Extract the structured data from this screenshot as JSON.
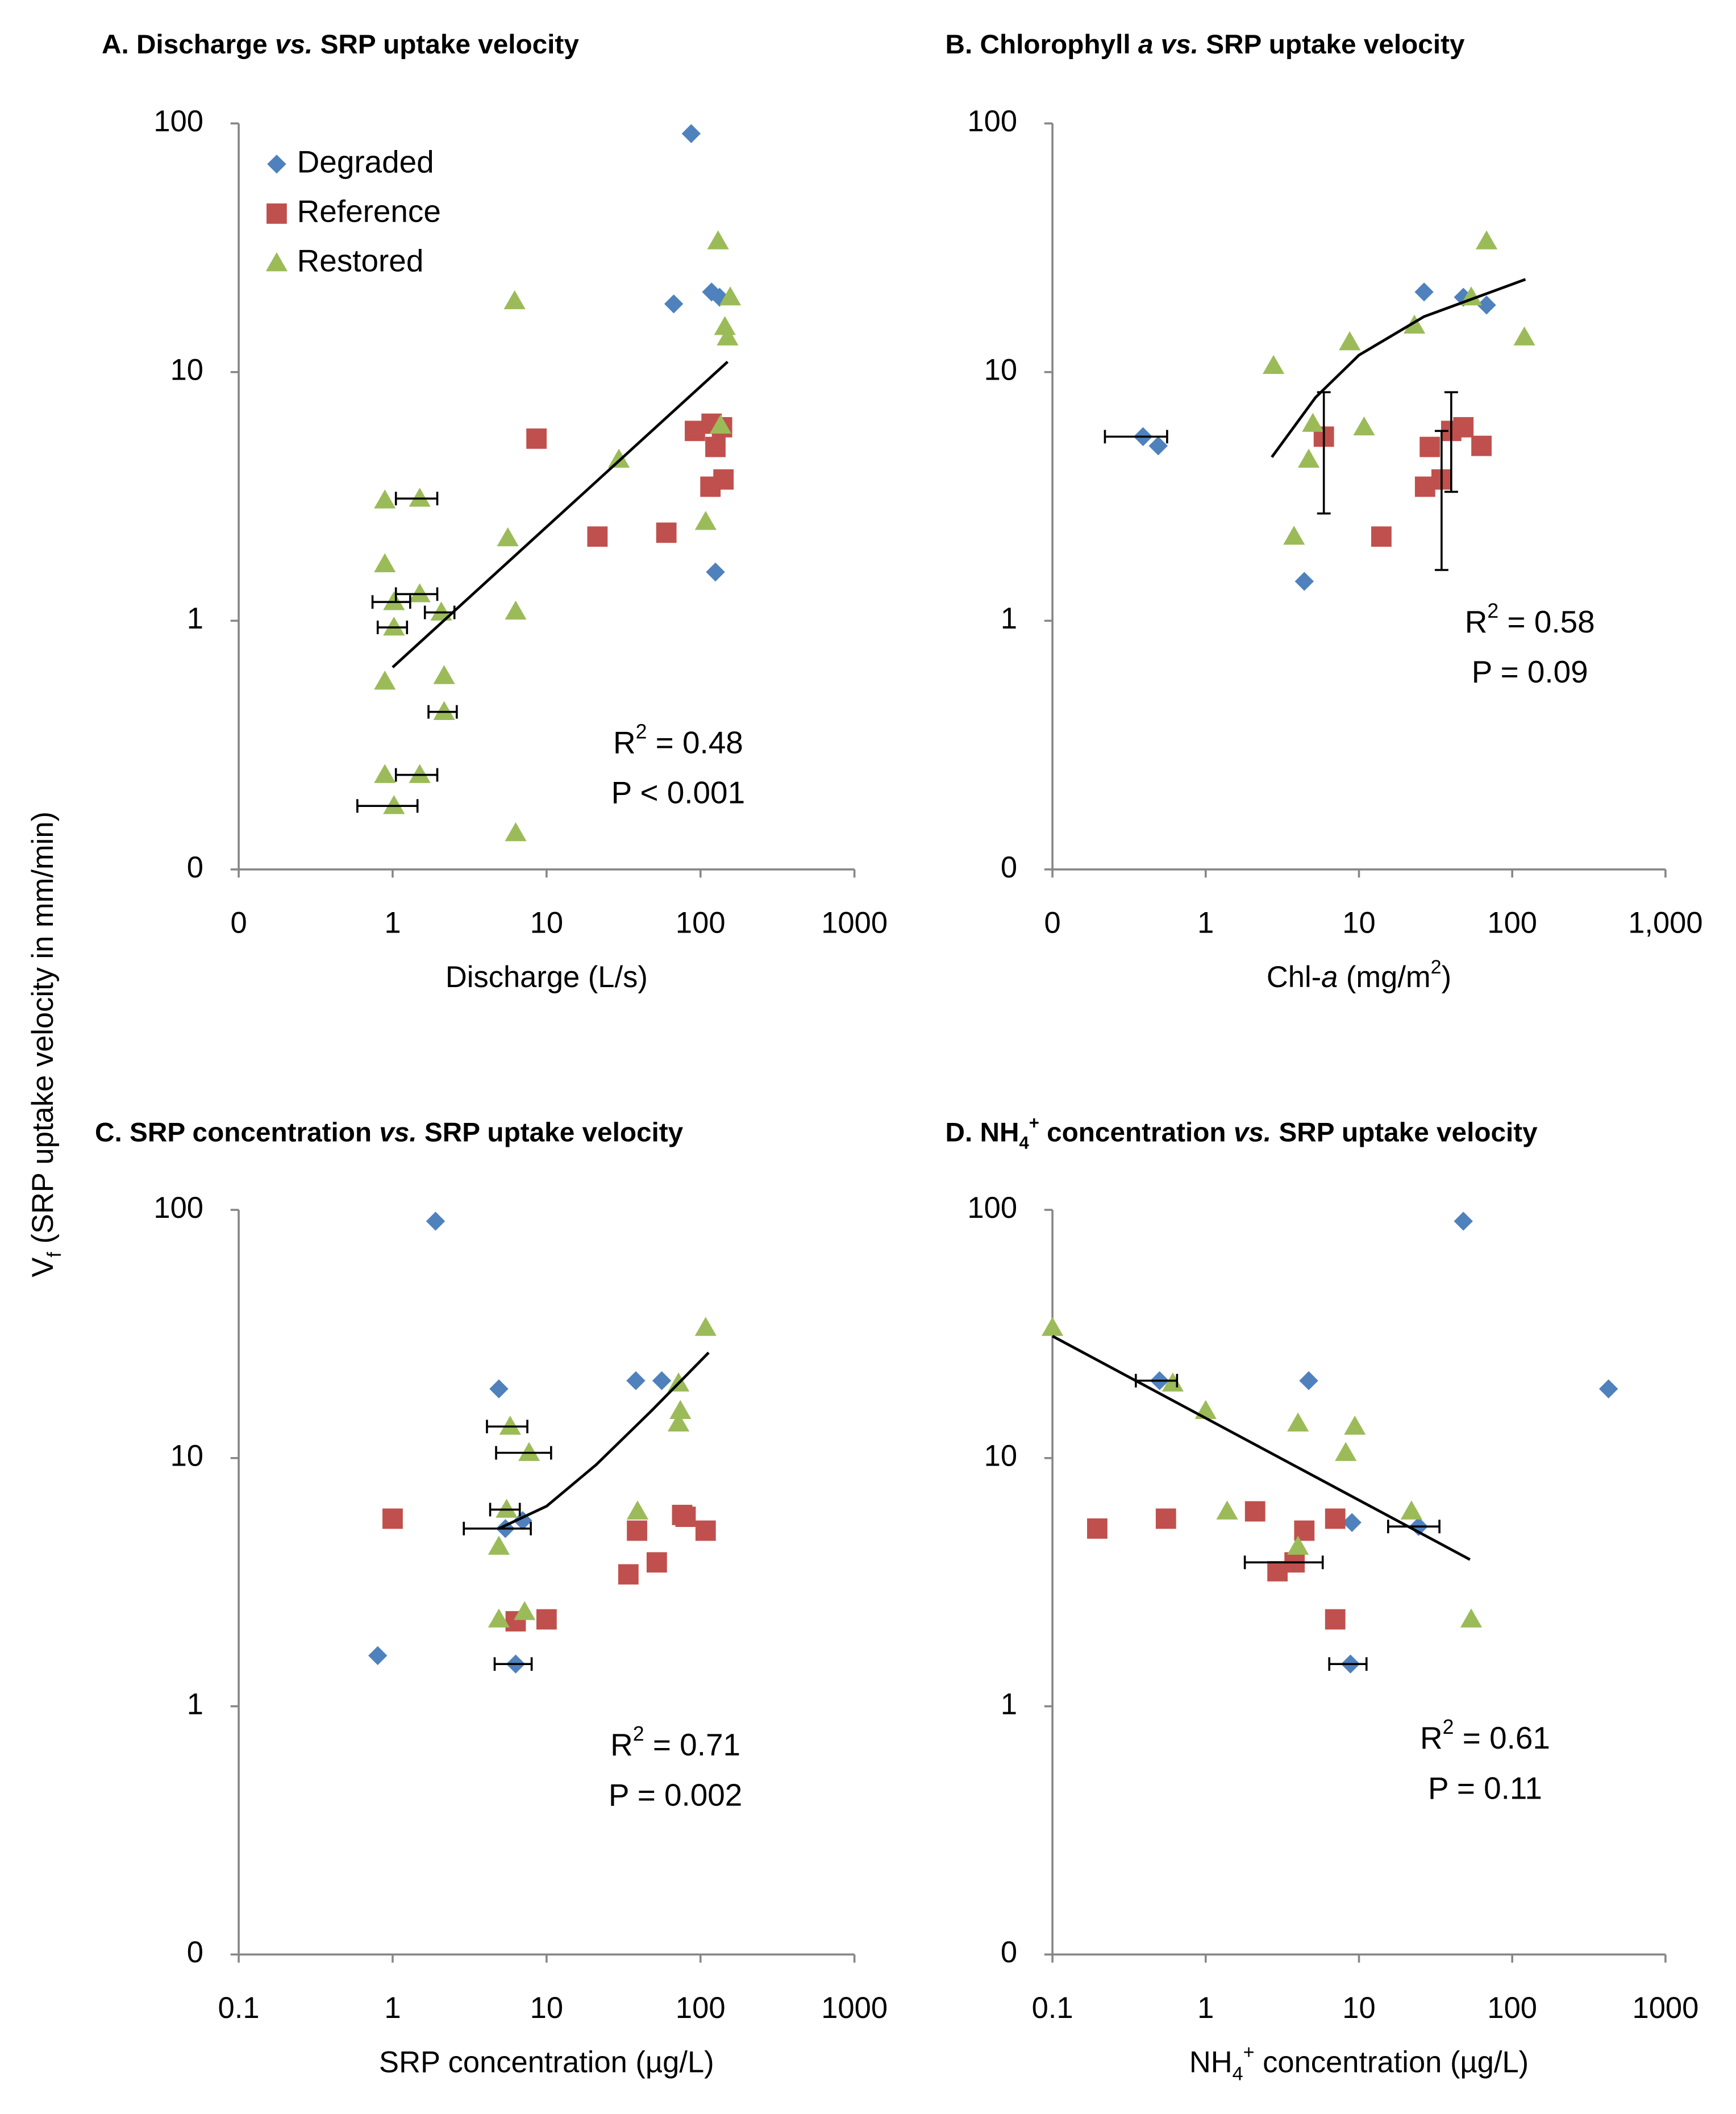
{
  "ylabel": [
    "V",
    {
      "text": "f",
      "style": "sub"
    },
    " (SRP uptake velocity in mm/min)"
  ],
  "chart_data": [
    {
      "type": "scatter",
      "title": [
        "A. Discharge ",
        {
          "text": "vs.",
          "style": "italic"
        },
        " SRP uptake velocity"
      ],
      "xlabel": "Discharge (L/s)",
      "xscale": "log",
      "yscale": "log",
      "xlim": [
        0.1,
        1000
      ],
      "xticks": [
        {
          "value": 0.1,
          "label": "0"
        },
        1,
        10,
        100,
        1000
      ],
      "ylim": [
        0.1,
        100
      ],
      "yticks": [
        {
          "value": 0.1,
          "label": "0"
        },
        1,
        10,
        100
      ],
      "legend": "upper left",
      "stats": [
        [
          "R",
          {
            "text": "2",
            "style": "sup"
          },
          " = 0.48"
        ],
        "P < 0.001"
      ],
      "trendline": {
        "x": [
          1,
          150
        ],
        "y": [
          0.65,
          11
        ]
      },
      "series": [
        {
          "name": "Degraded",
          "color": "#4f81bd",
          "marker": "diamond",
          "x": [
            87,
            67,
            118,
            133,
            125
          ],
          "y": [
            91,
            18.8,
            21,
            20,
            1.57
          ]
        },
        {
          "name": "Reference",
          "color": "#c0504d",
          "marker": "square",
          "x": [
            8.6,
            21.4,
            60,
            92,
            118,
            138,
            125,
            116,
            141
          ],
          "y": [
            5.4,
            2.18,
            2.26,
            5.8,
            6.2,
            6.0,
            5.0,
            3.46,
            3.7
          ]
        },
        {
          "name": "Restored",
          "color": "#9bbb59",
          "marker": "triangle",
          "x": [
            130,
            156,
            6.2,
            144,
            150,
            135,
            29.5,
            108,
            5.6,
            0.89,
            1.5,
            0.89,
            1.5,
            1.02,
            2.07,
            6.3,
            1.02,
            2.16,
            0.89,
            2.16,
            0.89,
            1.5,
            1.02,
            6.3
          ],
          "y": [
            33.6,
            20,
            19.3,
            15.2,
            13.8,
            6.1,
            4.45,
            2.5,
            2.15,
            3.05,
            3.1,
            1.69,
            1.28,
            1.19,
            1.08,
            1.09,
            0.94,
            0.6,
            0.57,
            0.43,
            0.24,
            0.24,
            0.18,
            0.14
          ],
          "xerr": [
            null,
            null,
            null,
            null,
            null,
            null,
            null,
            null,
            null,
            null,
            0.45,
            null,
            0.45,
            0.28,
            0.45,
            null,
            0.22,
            null,
            null,
            0.45,
            null,
            0.45,
            0.43,
            null
          ]
        }
      ]
    },
    {
      "type": "scatter",
      "title": [
        "B. Chlorophyll ",
        {
          "text": "a vs.",
          "style": "italic"
        },
        " SRP uptake velocity"
      ],
      "xlabel": [
        "Chl-",
        {
          "text": "a",
          "style": "italic"
        },
        " (mg/m",
        {
          "text": "2",
          "style": "sup"
        },
        ")"
      ],
      "xscale": "log",
      "yscale": "log",
      "xlim": [
        0.1,
        1000
      ],
      "xticks": [
        {
          "value": 0.1,
          "label": "0"
        },
        1,
        10,
        100,
        {
          "value": 1000,
          "label": "1,000"
        }
      ],
      "ylim": [
        0.1,
        100
      ],
      "yticks": [
        {
          "value": 0.1,
          "label": "0"
        },
        1,
        10,
        100
      ],
      "stats": [
        [
          "R",
          {
            "text": "2",
            "style": "sup"
          },
          " = 0.58"
        ],
        "P = 0.09"
      ],
      "trendline": {
        "x": [
          2.7,
          5.2,
          10,
          26.5,
          122
        ],
        "y": [
          4.55,
          7.9,
          11.7,
          16.7,
          23.6
        ]
      },
      "series": [
        {
          "color": "#4f81bd",
          "marker": "diamond",
          "x": [
            0.39,
            0.49,
            4.4,
            26.6,
            48,
            68
          ],
          "y": [
            5.5,
            5.05,
            1.44,
            21,
            20,
            18.6
          ],
          "xerr": [
            0.17,
            null,
            null,
            null,
            null,
            null
          ]
        },
        {
          "color": "#c0504d",
          "marker": "square",
          "x": [
            5.9,
            14,
            29,
            27,
            34.6,
            40,
            48,
            63
          ],
          "y": [
            5.5,
            2.18,
            5.0,
            3.46,
            3.7,
            5.8,
            6.0,
            5.05
          ],
          "yerr": [
            2.8,
            null,
            null,
            null,
            2.1,
            2.5,
            null,
            null
          ]
        },
        {
          "color": "#9bbb59",
          "marker": "triangle",
          "x": [
            68,
            54,
            23,
            8.7,
            2.77,
            120,
            10.8,
            5.0,
            4.7,
            3.77
          ],
          "y": [
            33.6,
            20,
            15.4,
            13.2,
            10.6,
            13.8,
            6.0,
            6.2,
            4.45,
            2.18
          ]
        }
      ]
    },
    {
      "type": "scatter",
      "title": [
        "C. SRP concentration ",
        {
          "text": "vs.",
          "style": "italic"
        },
        " SRP uptake velocity"
      ],
      "xlabel": "SRP concentration (µg/L)",
      "xscale": "log",
      "yscale": "log",
      "xlim": [
        0.1,
        1000
      ],
      "xticks": [
        0.1,
        1,
        10,
        100,
        1000
      ],
      "ylim": [
        0.1,
        100
      ],
      "yticks": [
        {
          "value": 0.1,
          "label": "0"
        },
        1,
        10,
        100
      ],
      "stats": [
        [
          "R",
          {
            "text": "2",
            "style": "sup"
          },
          " = 0.71"
        ],
        "P = 0.002"
      ],
      "trendline": {
        "x": [
          4.9,
          10,
          21,
          48,
          113
        ],
        "y": [
          5.2,
          6.4,
          9.4,
          15.5,
          26.6
        ]
      },
      "series": [
        {
          "color": "#4f81bd",
          "marker": "diamond",
          "x": [
            1.9,
            4.9,
            38,
            56,
            0.8,
            6.3,
            7,
            5.4
          ],
          "y": [
            90,
            19,
            20.5,
            20.5,
            1.6,
            1.48,
            5.6,
            5.2
          ],
          "xerr": [
            null,
            null,
            null,
            null,
            null,
            1.7,
            null,
            2.5
          ]
        },
        {
          "color": "#c0504d",
          "marker": "square",
          "x": [
            1.0,
            6.3,
            10,
            38.7,
            34,
            52,
            76,
            80,
            108
          ],
          "y": [
            5.7,
            2.2,
            2.24,
            5.1,
            3.4,
            3.8,
            5.9,
            5.8,
            5.1
          ]
        },
        {
          "color": "#9bbb59",
          "marker": "triangle",
          "x": [
            108,
            72,
            74,
            72,
            5.8,
            7.7,
            5.5,
            39,
            4.9,
            4.9,
            7.2
          ],
          "y": [
            33.5,
            20,
            15.5,
            13.8,
            13.4,
            10.5,
            6.2,
            6.1,
            4.4,
            2.24,
            2.4
          ],
          "xerr": [
            null,
            null,
            null,
            null,
            1.7,
            3,
            1.2,
            null,
            null,
            null,
            null
          ]
        }
      ]
    },
    {
      "type": "scatter",
      "title": [
        "D. NH",
        {
          "text": "4",
          "style": "sub"
        },
        {
          "text": "+",
          "style": "sup"
        },
        " concentration ",
        {
          "text": "vs.",
          "style": "italic"
        },
        " SRP uptake velocity"
      ],
      "xlabel": [
        "NH",
        {
          "text": "4",
          "style": "sub"
        },
        {
          "text": "+",
          "style": "sup"
        },
        " concentration (µg/L)"
      ],
      "xscale": "log",
      "yscale": "log",
      "xlim": [
        0.1,
        1000
      ],
      "xticks": [
        0.1,
        1,
        10,
        100,
        1000
      ],
      "ylim": [
        0.1,
        100
      ],
      "yticks": [
        {
          "value": 0.1,
          "label": "0"
        },
        1,
        10,
        100
      ],
      "stats": [
        [
          "R",
          {
            "text": "2",
            "style": "sup"
          },
          " = 0.61"
        ],
        "P = 0.11"
      ],
      "trendline": {
        "x": [
          0.1,
          53
        ],
        "y": [
          31,
          3.9
        ]
      },
      "series": [
        {
          "color": "#4f81bd",
          "marker": "diamond",
          "x": [
            48,
            425,
            4.7,
            0.5,
            9,
            24.5,
            8.8
          ],
          "y": [
            90,
            19,
            20.5,
            20.5,
            5.5,
            5.3,
            1.48
          ],
          "xerr": [
            null,
            null,
            null,
            0.15,
            null,
            9,
            2.4
          ]
        },
        {
          "color": "#c0504d",
          "marker": "square",
          "x": [
            0.196,
            0.55,
            2.1,
            4.4,
            7.0,
            3.8,
            2.94,
            7.0
          ],
          "y": [
            5.2,
            5.7,
            6.1,
            5.1,
            5.7,
            3.8,
            3.5,
            2.24
          ],
          "xerr": [
            null,
            null,
            null,
            null,
            null,
            2.0,
            null,
            null
          ]
        },
        {
          "color": "#9bbb59",
          "marker": "triangle",
          "x": [
            0.1,
            0.61,
            1.0,
            4.0,
            9.4,
            8.2,
            1.38,
            22,
            4.0,
            54
          ],
          "y": [
            33.5,
            20,
            15.5,
            13.8,
            13.4,
            10.5,
            6.1,
            6.1,
            4.4,
            2.24
          ]
        }
      ]
    }
  ]
}
